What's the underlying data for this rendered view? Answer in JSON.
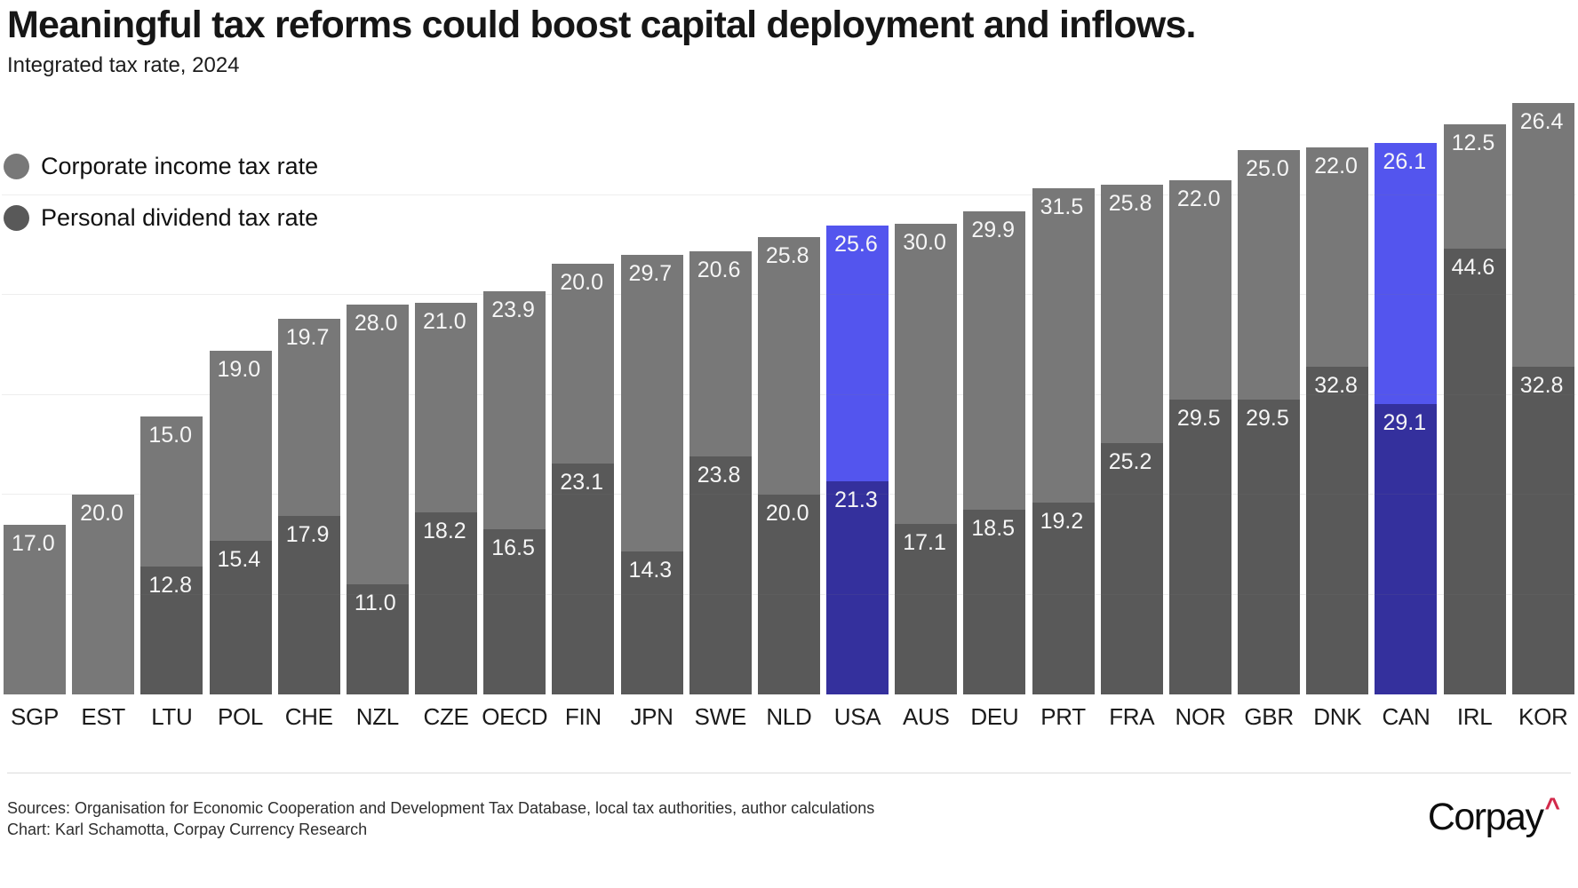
{
  "header": {
    "title": "Meaningful tax reforms could boost capital deployment and inflows.",
    "subtitle": "Integrated tax rate, 2024"
  },
  "legend": {
    "items": [
      {
        "label": "Corporate income tax rate",
        "color": "#787878"
      },
      {
        "label": "Personal dividend tax rate",
        "color": "#595959"
      }
    ]
  },
  "chart_data": {
    "type": "bar",
    "stacked": true,
    "title": "Meaningful tax reforms could boost capital deployment and inflows.",
    "subtitle": "Integrated tax rate, 2024",
    "categories": [
      "SGP",
      "EST",
      "LTU",
      "POL",
      "CHE",
      "NZL",
      "CZE",
      "OECD",
      "FIN",
      "JPN",
      "SWE",
      "NLD",
      "USA",
      "AUS",
      "DEU",
      "PRT",
      "FRA",
      "NOR",
      "GBR",
      "DNK",
      "CAN",
      "IRL",
      "KOR"
    ],
    "series": [
      {
        "name": "Corporate income tax rate",
        "values": [
          17.0,
          20.0,
          15.0,
          19.0,
          19.7,
          28.0,
          21.0,
          23.9,
          20.0,
          29.7,
          20.6,
          25.8,
          25.6,
          30.0,
          29.9,
          31.5,
          25.8,
          22.0,
          25.0,
          22.0,
          26.1,
          12.5,
          26.4
        ]
      },
      {
        "name": "Personal dividend tax rate",
        "values": [
          null,
          null,
          12.8,
          15.4,
          17.9,
          11.0,
          18.2,
          16.5,
          23.1,
          14.3,
          23.8,
          20.0,
          21.3,
          17.1,
          18.5,
          19.2,
          25.2,
          29.5,
          29.5,
          32.8,
          29.1,
          44.6,
          32.8
        ]
      }
    ],
    "highlight_categories": [
      "USA",
      "CAN"
    ],
    "colors": {
      "corporate": "#787878",
      "personal": "#595959",
      "corporate_highlight": "#5355ee",
      "personal_highlight": "#34309d",
      "value_label": "#f6f6f6"
    },
    "ylim": [
      0,
      60
    ],
    "grid_step": 10,
    "grid": true,
    "legend_position": "top-left",
    "value_label_format": "one-decimal"
  },
  "footer": {
    "sources": "Sources: Organisation for Economic Cooperation and Development Tax Database, local tax authorities, author calculations",
    "credit": "Chart: Karl Schamotta, Corpay Currency Research",
    "logo_text": "Corpay",
    "logo_caret": "^"
  }
}
